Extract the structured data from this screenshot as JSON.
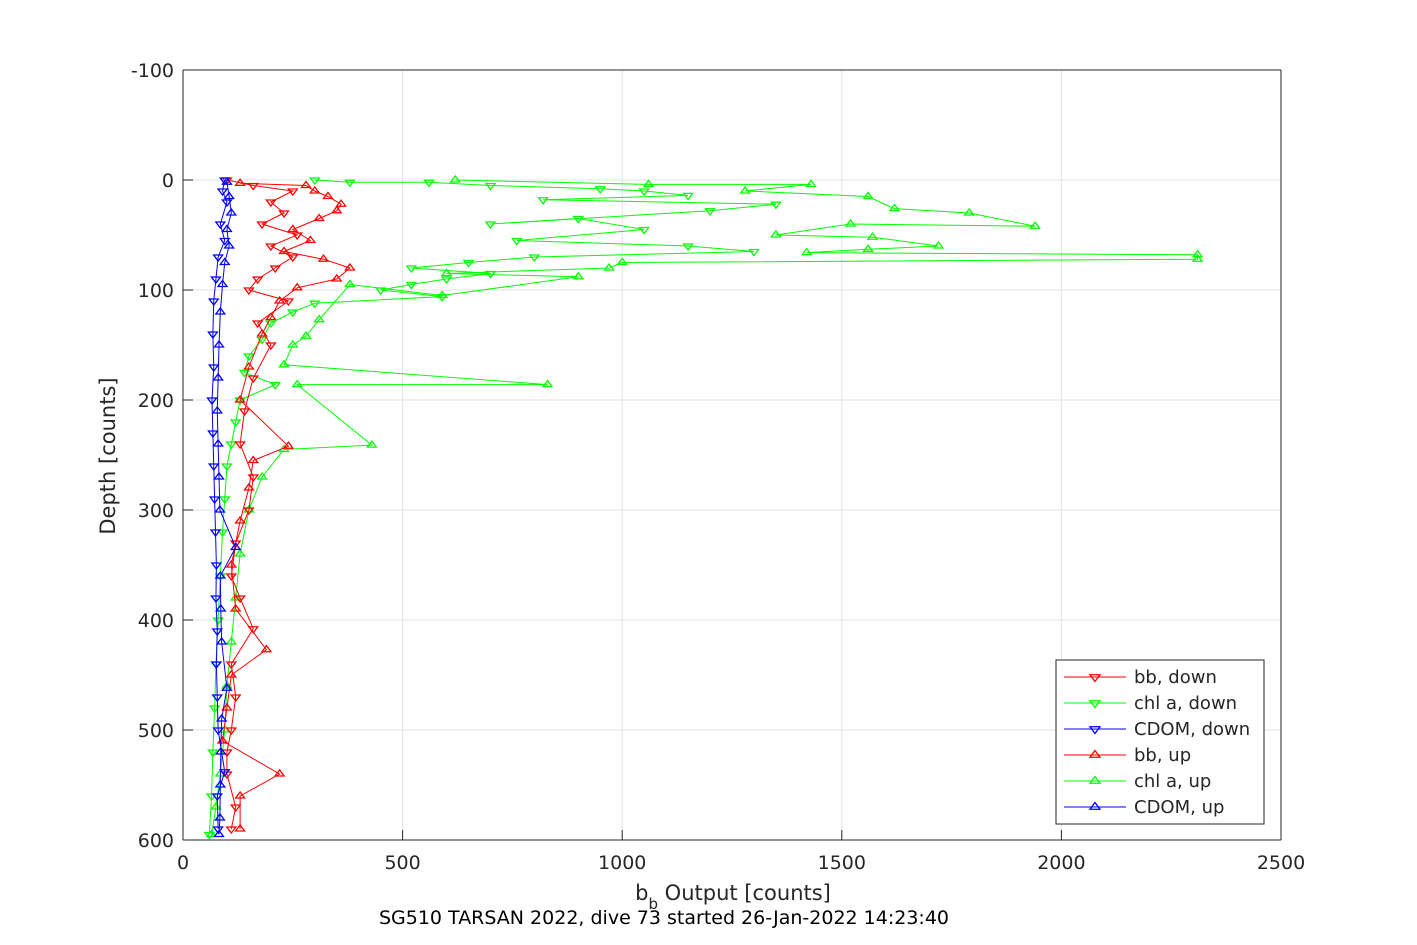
{
  "chart_data": {
    "type": "scatter",
    "caption": "SG510 TARSAN 2022, dive 73 started 26-Jan-2022 14:23:40",
    "xlabel_main": "b",
    "xlabel_sub": "b",
    "xlabel_rest": " Output [counts]",
    "ylabel": "Depth [counts]",
    "xlim": [
      0,
      2500
    ],
    "ylim": [
      -100,
      600
    ],
    "y_reversed": true,
    "grid": true,
    "legend_position": "bottom-right",
    "x_ticks": [
      "0",
      "500",
      "1000",
      "1500",
      "2000",
      "2500"
    ],
    "y_ticks": [
      "-100",
      "0",
      "100",
      "200",
      "300",
      "400",
      "500",
      "600"
    ],
    "colors": {
      "bb": "#ff0000",
      "chl": "#00ff00",
      "cdom": "#0000ff"
    },
    "legend": [
      {
        "label": "bb, down",
        "color": "#ff0000",
        "marker": "down"
      },
      {
        "label": "chl a, down",
        "color": "#00ff00",
        "marker": "down"
      },
      {
        "label": "CDOM, down",
        "color": "#0000ff",
        "marker": "down"
      },
      {
        "label": "bb, up",
        "color": "#ff0000",
        "marker": "up"
      },
      {
        "label": "chl a, up",
        "color": "#00ff00",
        "marker": "up"
      },
      {
        "label": "CDOM, up",
        "color": "#0000ff",
        "marker": "up"
      }
    ],
    "series": [
      {
        "name": "chl a, down",
        "color": "#00ff00",
        "marker": "down",
        "points": [
          [
            300,
            0
          ],
          [
            380,
            2
          ],
          [
            560,
            2
          ],
          [
            700,
            5
          ],
          [
            950,
            8
          ],
          [
            1050,
            10
          ],
          [
            1150,
            14
          ],
          [
            820,
            18
          ],
          [
            1350,
            22
          ],
          [
            1200,
            28
          ],
          [
            700,
            40
          ],
          [
            900,
            35
          ],
          [
            1050,
            45
          ],
          [
            760,
            55
          ],
          [
            1150,
            60
          ],
          [
            1300,
            65
          ],
          [
            800,
            70
          ],
          [
            650,
            75
          ],
          [
            520,
            80
          ],
          [
            700,
            85
          ],
          [
            600,
            90
          ],
          [
            520,
            95
          ],
          [
            450,
            100
          ],
          [
            590,
            106
          ],
          [
            300,
            112
          ],
          [
            250,
            120
          ],
          [
            200,
            130
          ],
          [
            180,
            145
          ],
          [
            150,
            160
          ],
          [
            140,
            175
          ],
          [
            210,
            186
          ],
          [
            130,
            200
          ],
          [
            120,
            220
          ],
          [
            110,
            240
          ],
          [
            100,
            260
          ],
          [
            95,
            290
          ],
          [
            90,
            320
          ],
          [
            85,
            360
          ],
          [
            80,
            400
          ],
          [
            75,
            440
          ],
          [
            72,
            480
          ],
          [
            68,
            520
          ],
          [
            65,
            560
          ],
          [
            60,
            595
          ]
        ]
      },
      {
        "name": "chl a, up",
        "color": "#00ff00",
        "marker": "up",
        "points": [
          [
            620,
            0
          ],
          [
            1060,
            4
          ],
          [
            1430,
            4
          ],
          [
            1280,
            10
          ],
          [
            1560,
            15
          ],
          [
            1620,
            26
          ],
          [
            1790,
            30
          ],
          [
            1940,
            42
          ],
          [
            1520,
            40
          ],
          [
            1350,
            50
          ],
          [
            1570,
            52
          ],
          [
            1720,
            60
          ],
          [
            1560,
            63
          ],
          [
            1420,
            66
          ],
          [
            2310,
            68
          ],
          [
            2310,
            72
          ],
          [
            1000,
            75
          ],
          [
            970,
            80
          ],
          [
            600,
            85
          ],
          [
            900,
            88
          ],
          [
            590,
            105
          ],
          [
            380,
            95
          ],
          [
            310,
            127
          ],
          [
            280,
            142
          ],
          [
            250,
            150
          ],
          [
            230,
            168
          ],
          [
            830,
            186
          ],
          [
            260,
            186
          ],
          [
            430,
            241
          ],
          [
            230,
            245
          ],
          [
            180,
            270
          ],
          [
            150,
            300
          ],
          [
            130,
            340
          ],
          [
            120,
            380
          ],
          [
            110,
            420
          ],
          [
            100,
            460
          ],
          [
            95,
            500
          ],
          [
            85,
            540
          ],
          [
            75,
            570
          ],
          [
            65,
            595
          ]
        ]
      },
      {
        "name": "bb, down",
        "color": "#ff0000",
        "marker": "down",
        "points": [
          [
            100,
            0
          ],
          [
            160,
            5
          ],
          [
            250,
            10
          ],
          [
            200,
            20
          ],
          [
            230,
            30
          ],
          [
            180,
            40
          ],
          [
            260,
            50
          ],
          [
            200,
            60
          ],
          [
            250,
            70
          ],
          [
            210,
            80
          ],
          [
            170,
            90
          ],
          [
            150,
            100
          ],
          [
            240,
            110
          ],
          [
            170,
            130
          ],
          [
            200,
            150
          ],
          [
            160,
            180
          ],
          [
            140,
            210
          ],
          [
            130,
            240
          ],
          [
            160,
            270
          ],
          [
            150,
            300
          ],
          [
            120,
            330
          ],
          [
            110,
            360
          ],
          [
            130,
            380
          ],
          [
            160,
            408
          ],
          [
            110,
            440
          ],
          [
            120,
            470
          ],
          [
            110,
            500
          ],
          [
            100,
            520
          ],
          [
            100,
            540
          ],
          [
            120,
            570
          ],
          [
            110,
            590
          ]
        ]
      },
      {
        "name": "bb, up",
        "color": "#ff0000",
        "marker": "up",
        "points": [
          [
            130,
            3
          ],
          [
            280,
            5
          ],
          [
            300,
            10
          ],
          [
            330,
            15
          ],
          [
            360,
            22
          ],
          [
            350,
            28
          ],
          [
            310,
            35
          ],
          [
            250,
            45
          ],
          [
            290,
            55
          ],
          [
            230,
            65
          ],
          [
            320,
            72
          ],
          [
            380,
            80
          ],
          [
            350,
            90
          ],
          [
            260,
            98
          ],
          [
            220,
            110
          ],
          [
            200,
            125
          ],
          [
            180,
            140
          ],
          [
            150,
            170
          ],
          [
            130,
            200
          ],
          [
            240,
            242
          ],
          [
            160,
            255
          ],
          [
            150,
            280
          ],
          [
            130,
            310
          ],
          [
            110,
            350
          ],
          [
            120,
            390
          ],
          [
            190,
            427
          ],
          [
            110,
            450
          ],
          [
            100,
            480
          ],
          [
            90,
            510
          ],
          [
            220,
            540
          ],
          [
            130,
            560
          ],
          [
            130,
            590
          ]
        ]
      },
      {
        "name": "CDOM, down",
        "color": "#0000ff",
        "marker": "down",
        "points": [
          [
            95,
            0
          ],
          [
            90,
            10
          ],
          [
            100,
            20
          ],
          [
            85,
            40
          ],
          [
            95,
            55
          ],
          [
            80,
            70
          ],
          [
            75,
            90
          ],
          [
            70,
            110
          ],
          [
            68,
            140
          ],
          [
            70,
            170
          ],
          [
            66,
            200
          ],
          [
            68,
            230
          ],
          [
            70,
            260
          ],
          [
            72,
            290
          ],
          [
            74,
            320
          ],
          [
            76,
            350
          ],
          [
            75,
            380
          ],
          [
            78,
            410
          ],
          [
            76,
            440
          ],
          [
            78,
            470
          ],
          [
            80,
            500
          ],
          [
            95,
            538
          ],
          [
            78,
            560
          ],
          [
            80,
            590
          ]
        ]
      },
      {
        "name": "CDOM, up",
        "color": "#0000ff",
        "marker": "up",
        "points": [
          [
            100,
            2
          ],
          [
            105,
            15
          ],
          [
            110,
            30
          ],
          [
            100,
            45
          ],
          [
            105,
            60
          ],
          [
            95,
            75
          ],
          [
            90,
            95
          ],
          [
            85,
            120
          ],
          [
            82,
            150
          ],
          [
            80,
            180
          ],
          [
            78,
            210
          ],
          [
            80,
            240
          ],
          [
            82,
            270
          ],
          [
            84,
            300
          ],
          [
            120,
            334
          ],
          [
            85,
            360
          ],
          [
            86,
            390
          ],
          [
            88,
            420
          ],
          [
            100,
            462
          ],
          [
            88,
            490
          ],
          [
            86,
            520
          ],
          [
            85,
            550
          ],
          [
            84,
            580
          ],
          [
            82,
            595
          ]
        ]
      }
    ]
  }
}
